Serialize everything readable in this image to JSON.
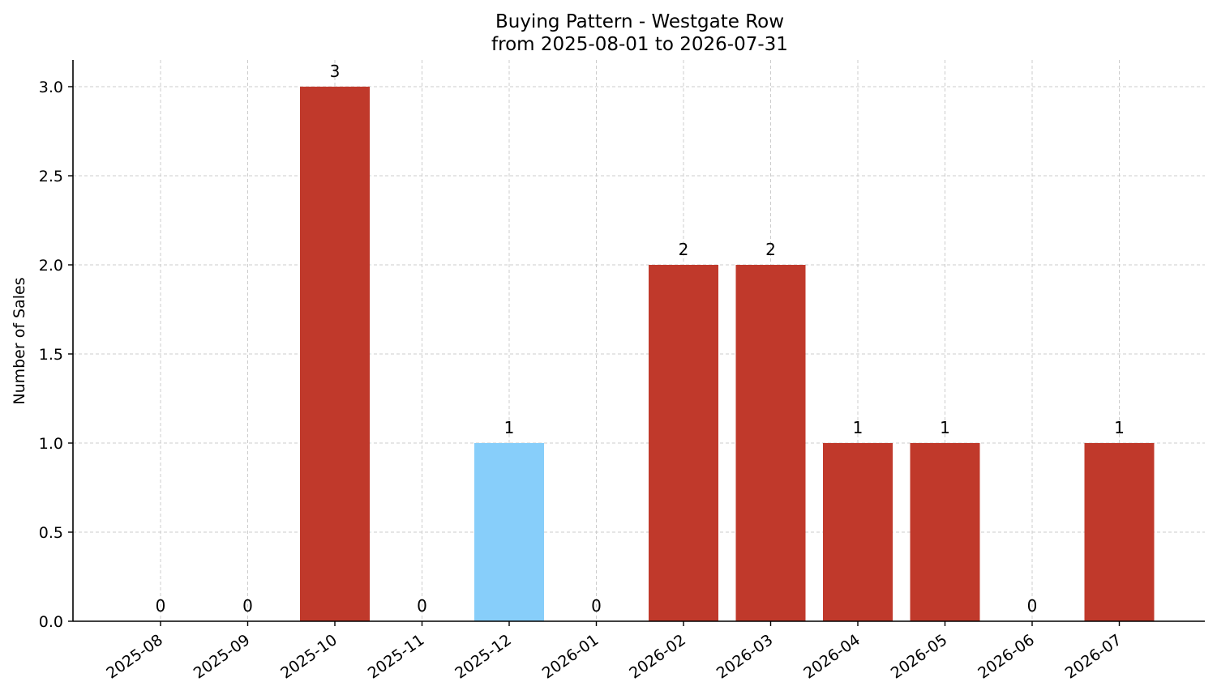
{
  "chart_data": {
    "type": "bar",
    "title": "Buying Pattern - Westgate Row",
    "subtitle": "from 2025-08-01 to 2026-07-31",
    "xlabel": "",
    "ylabel": "Number of Sales",
    "categories": [
      "2025-08",
      "2025-09",
      "2025-10",
      "2025-11",
      "2025-12",
      "2026-01",
      "2026-02",
      "2026-03",
      "2026-04",
      "2026-05",
      "2026-06",
      "2026-07"
    ],
    "values": [
      0,
      0,
      3,
      0,
      1,
      0,
      2,
      2,
      1,
      1,
      0,
      1
    ],
    "bar_colors": [
      "#c0392b",
      "#c0392b",
      "#c0392b",
      "#c0392b",
      "#87cefa",
      "#c0392b",
      "#c0392b",
      "#c0392b",
      "#c0392b",
      "#c0392b",
      "#c0392b",
      "#c0392b"
    ],
    "ylim": [
      0,
      3.15
    ],
    "yticks": [
      "0.0",
      "0.5",
      "1.0",
      "1.5",
      "2.0",
      "2.5",
      "3.0"
    ],
    "grid": true,
    "legend": "none"
  }
}
